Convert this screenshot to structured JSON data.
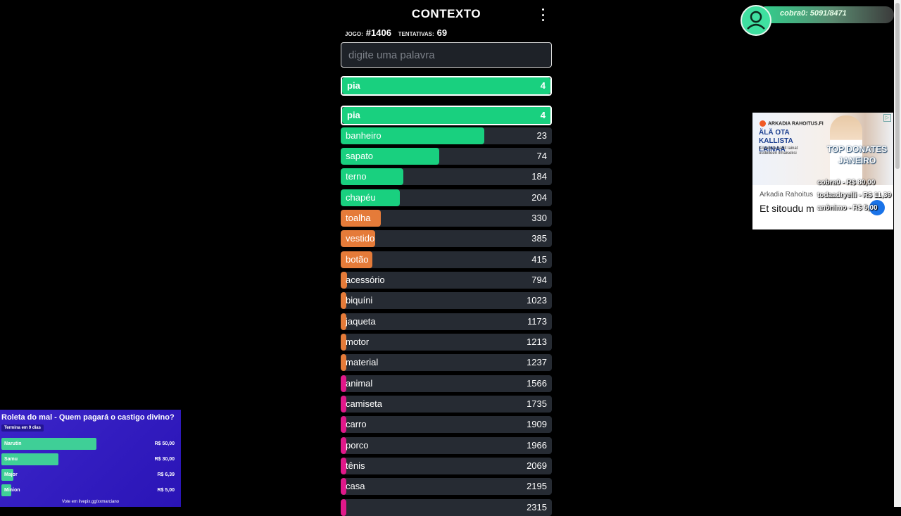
{
  "game": {
    "title": "CONTEXTO",
    "game_label": "JOGO:",
    "game_number": "#1406",
    "attempts_label": "TENTATIVAS:",
    "attempts": "69",
    "input_placeholder": "digite uma palavra",
    "last_guess": {
      "word": "pia",
      "rank": "4"
    }
  },
  "colors": {
    "green": "#19d07f",
    "orange": "#e57b39",
    "pink": "#e0198a",
    "row_bg": "#262b33"
  },
  "guesses": [
    {
      "word": "pia",
      "rank": 4,
      "highlight": true
    },
    {
      "word": "banheiro",
      "rank": 23
    },
    {
      "word": "sapato",
      "rank": 74
    },
    {
      "word": "terno",
      "rank": 184
    },
    {
      "word": "chapéu",
      "rank": 204
    },
    {
      "word": "toalha",
      "rank": 330
    },
    {
      "word": "vestido",
      "rank": 385
    },
    {
      "word": "botão",
      "rank": 415
    },
    {
      "word": "acessório",
      "rank": 794
    },
    {
      "word": "biquíni",
      "rank": 1023
    },
    {
      "word": "jaqueta",
      "rank": 1173
    },
    {
      "word": "motor",
      "rank": 1213
    },
    {
      "word": "material",
      "rank": 1237
    },
    {
      "word": "animal",
      "rank": 1566
    },
    {
      "word": "camiseta",
      "rank": 1735
    },
    {
      "word": "carro",
      "rank": 1909
    },
    {
      "word": "porco",
      "rank": 1966
    },
    {
      "word": "tênis",
      "rank": 2069
    },
    {
      "word": "casa",
      "rank": 2195
    },
    {
      "word": "",
      "rank": 2315
    }
  ],
  "overlay_viewer": {
    "text": "cobra0: 5091/8471"
  },
  "ad": {
    "brand": "ARKADIA RAHOITUS.FI",
    "headline": "ÄLÄ OTA KALLISTA LAINAA",
    "subtext": "Kilpailuta kalliit lainat uudelleen ilmaiseksi",
    "advertiser": "Arkadia Rahoitus",
    "title": "Et sitoudu m",
    "choice_icon": "▷"
  },
  "donates": {
    "title_line1": "TOP DONATES",
    "title_line2": "JANEIRO",
    "items": [
      "cobra0 - R$ 80,00",
      "todaadryelli - R$ 11,39",
      "anônimo - R$ 5,00"
    ]
  },
  "roleta": {
    "title": "Roleta do mal - Quem pagará o castigo divino?",
    "ends": "Termina em 9 dias",
    "items": [
      {
        "name": "Narutin",
        "amount": "R$ 50,00",
        "fraction": 0.55
      },
      {
        "name": "Samu",
        "amount": "R$ 30,00",
        "fraction": 0.33
      },
      {
        "name": "Major",
        "amount": "R$ 6,39",
        "fraction": 0.07
      },
      {
        "name": "Minion",
        "amount": "R$ 5,00",
        "fraction": 0.055
      }
    ],
    "vote": "Vote em livepix.gg/xxmarciano"
  }
}
